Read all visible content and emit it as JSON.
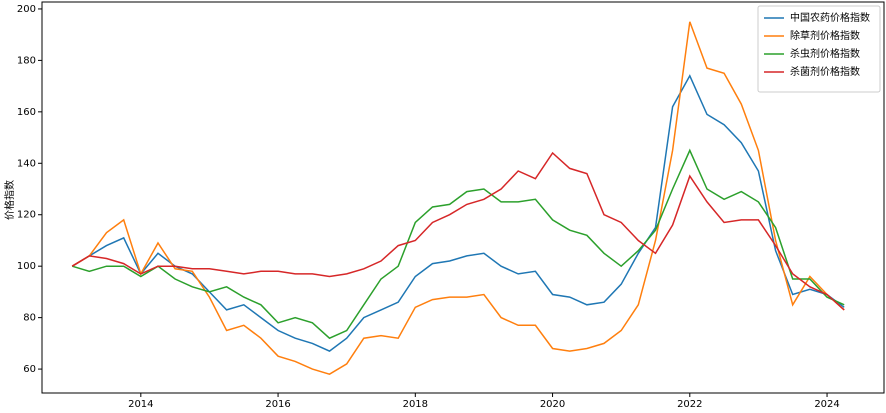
{
  "chart_data": {
    "type": "line",
    "y_label": "价格指数",
    "x": [
      2013.0,
      2013.25,
      2013.5,
      2013.75,
      2014.0,
      2014.25,
      2014.5,
      2014.75,
      2015.0,
      2015.25,
      2015.5,
      2015.75,
      2016.0,
      2016.25,
      2016.5,
      2016.75,
      2017.0,
      2017.25,
      2017.5,
      2017.75,
      2018.0,
      2018.25,
      2018.5,
      2018.75,
      2019.0,
      2019.25,
      2019.5,
      2019.75,
      2020.0,
      2020.25,
      2020.5,
      2020.75,
      2021.0,
      2021.25,
      2021.5,
      2021.75,
      2022.0,
      2022.25,
      2022.5,
      2022.75,
      2023.0,
      2023.25,
      2023.5,
      2023.75,
      2024.0,
      2024.25
    ],
    "series": [
      {
        "name": "中国农药价格指数",
        "color": "#1f77b4",
        "values": [
          100,
          104,
          108,
          111,
          97,
          105,
          100,
          97,
          90,
          83,
          85,
          80,
          75,
          72,
          70,
          67,
          72,
          80,
          83,
          86,
          96,
          101,
          102,
          104,
          105,
          100,
          97,
          98,
          89,
          88,
          85,
          86,
          93,
          105,
          115,
          162,
          174,
          159,
          155,
          148,
          137,
          106,
          89,
          91,
          89,
          84
        ]
      },
      {
        "name": "除草剂价格指数",
        "color": "#ff7f0e",
        "values": [
          100,
          104,
          113,
          118,
          97,
          109,
          99,
          98,
          88,
          75,
          77,
          72,
          65,
          63,
          60,
          58,
          62,
          72,
          73,
          72,
          84,
          87,
          88,
          88,
          89,
          80,
          77,
          77,
          68,
          67,
          68,
          70,
          75,
          85,
          110,
          145,
          195,
          177,
          175,
          163,
          145,
          110,
          85,
          96,
          89,
          83
        ]
      },
      {
        "name": "杀虫剂价格指数",
        "color": "#2ca02c",
        "values": [
          100,
          98,
          100,
          100,
          96,
          100,
          95,
          92,
          90,
          92,
          88,
          85,
          78,
          80,
          78,
          72,
          75,
          85,
          95,
          100,
          117,
          123,
          124,
          129,
          130,
          125,
          125,
          126,
          118,
          114,
          112,
          105,
          100,
          106,
          114,
          130,
          145,
          130,
          126,
          129,
          125,
          115,
          95,
          95,
          88,
          85
        ]
      },
      {
        "name": "杀菌剂价格指数",
        "color": "#d62728",
        "values": [
          100,
          104,
          103,
          101,
          97,
          100,
          100,
          99,
          99,
          98,
          97,
          98,
          98,
          97,
          97,
          96,
          97,
          99,
          102,
          108,
          110,
          117,
          120,
          124,
          126,
          130,
          137,
          134,
          144,
          138,
          136,
          120,
          117,
          110,
          105,
          116,
          135,
          125,
          117,
          118,
          118,
          108,
          97,
          92,
          89,
          83
        ]
      }
    ],
    "xlim": [
      2012.56,
      2024.83
    ],
    "xticks": [
      2014,
      2016,
      2018,
      2020,
      2022,
      2024
    ],
    "ylim": [
      50.7,
      202.7
    ],
    "yticks": [
      60,
      80,
      100,
      120,
      140,
      160,
      180,
      200
    ],
    "legend": "upper right"
  }
}
